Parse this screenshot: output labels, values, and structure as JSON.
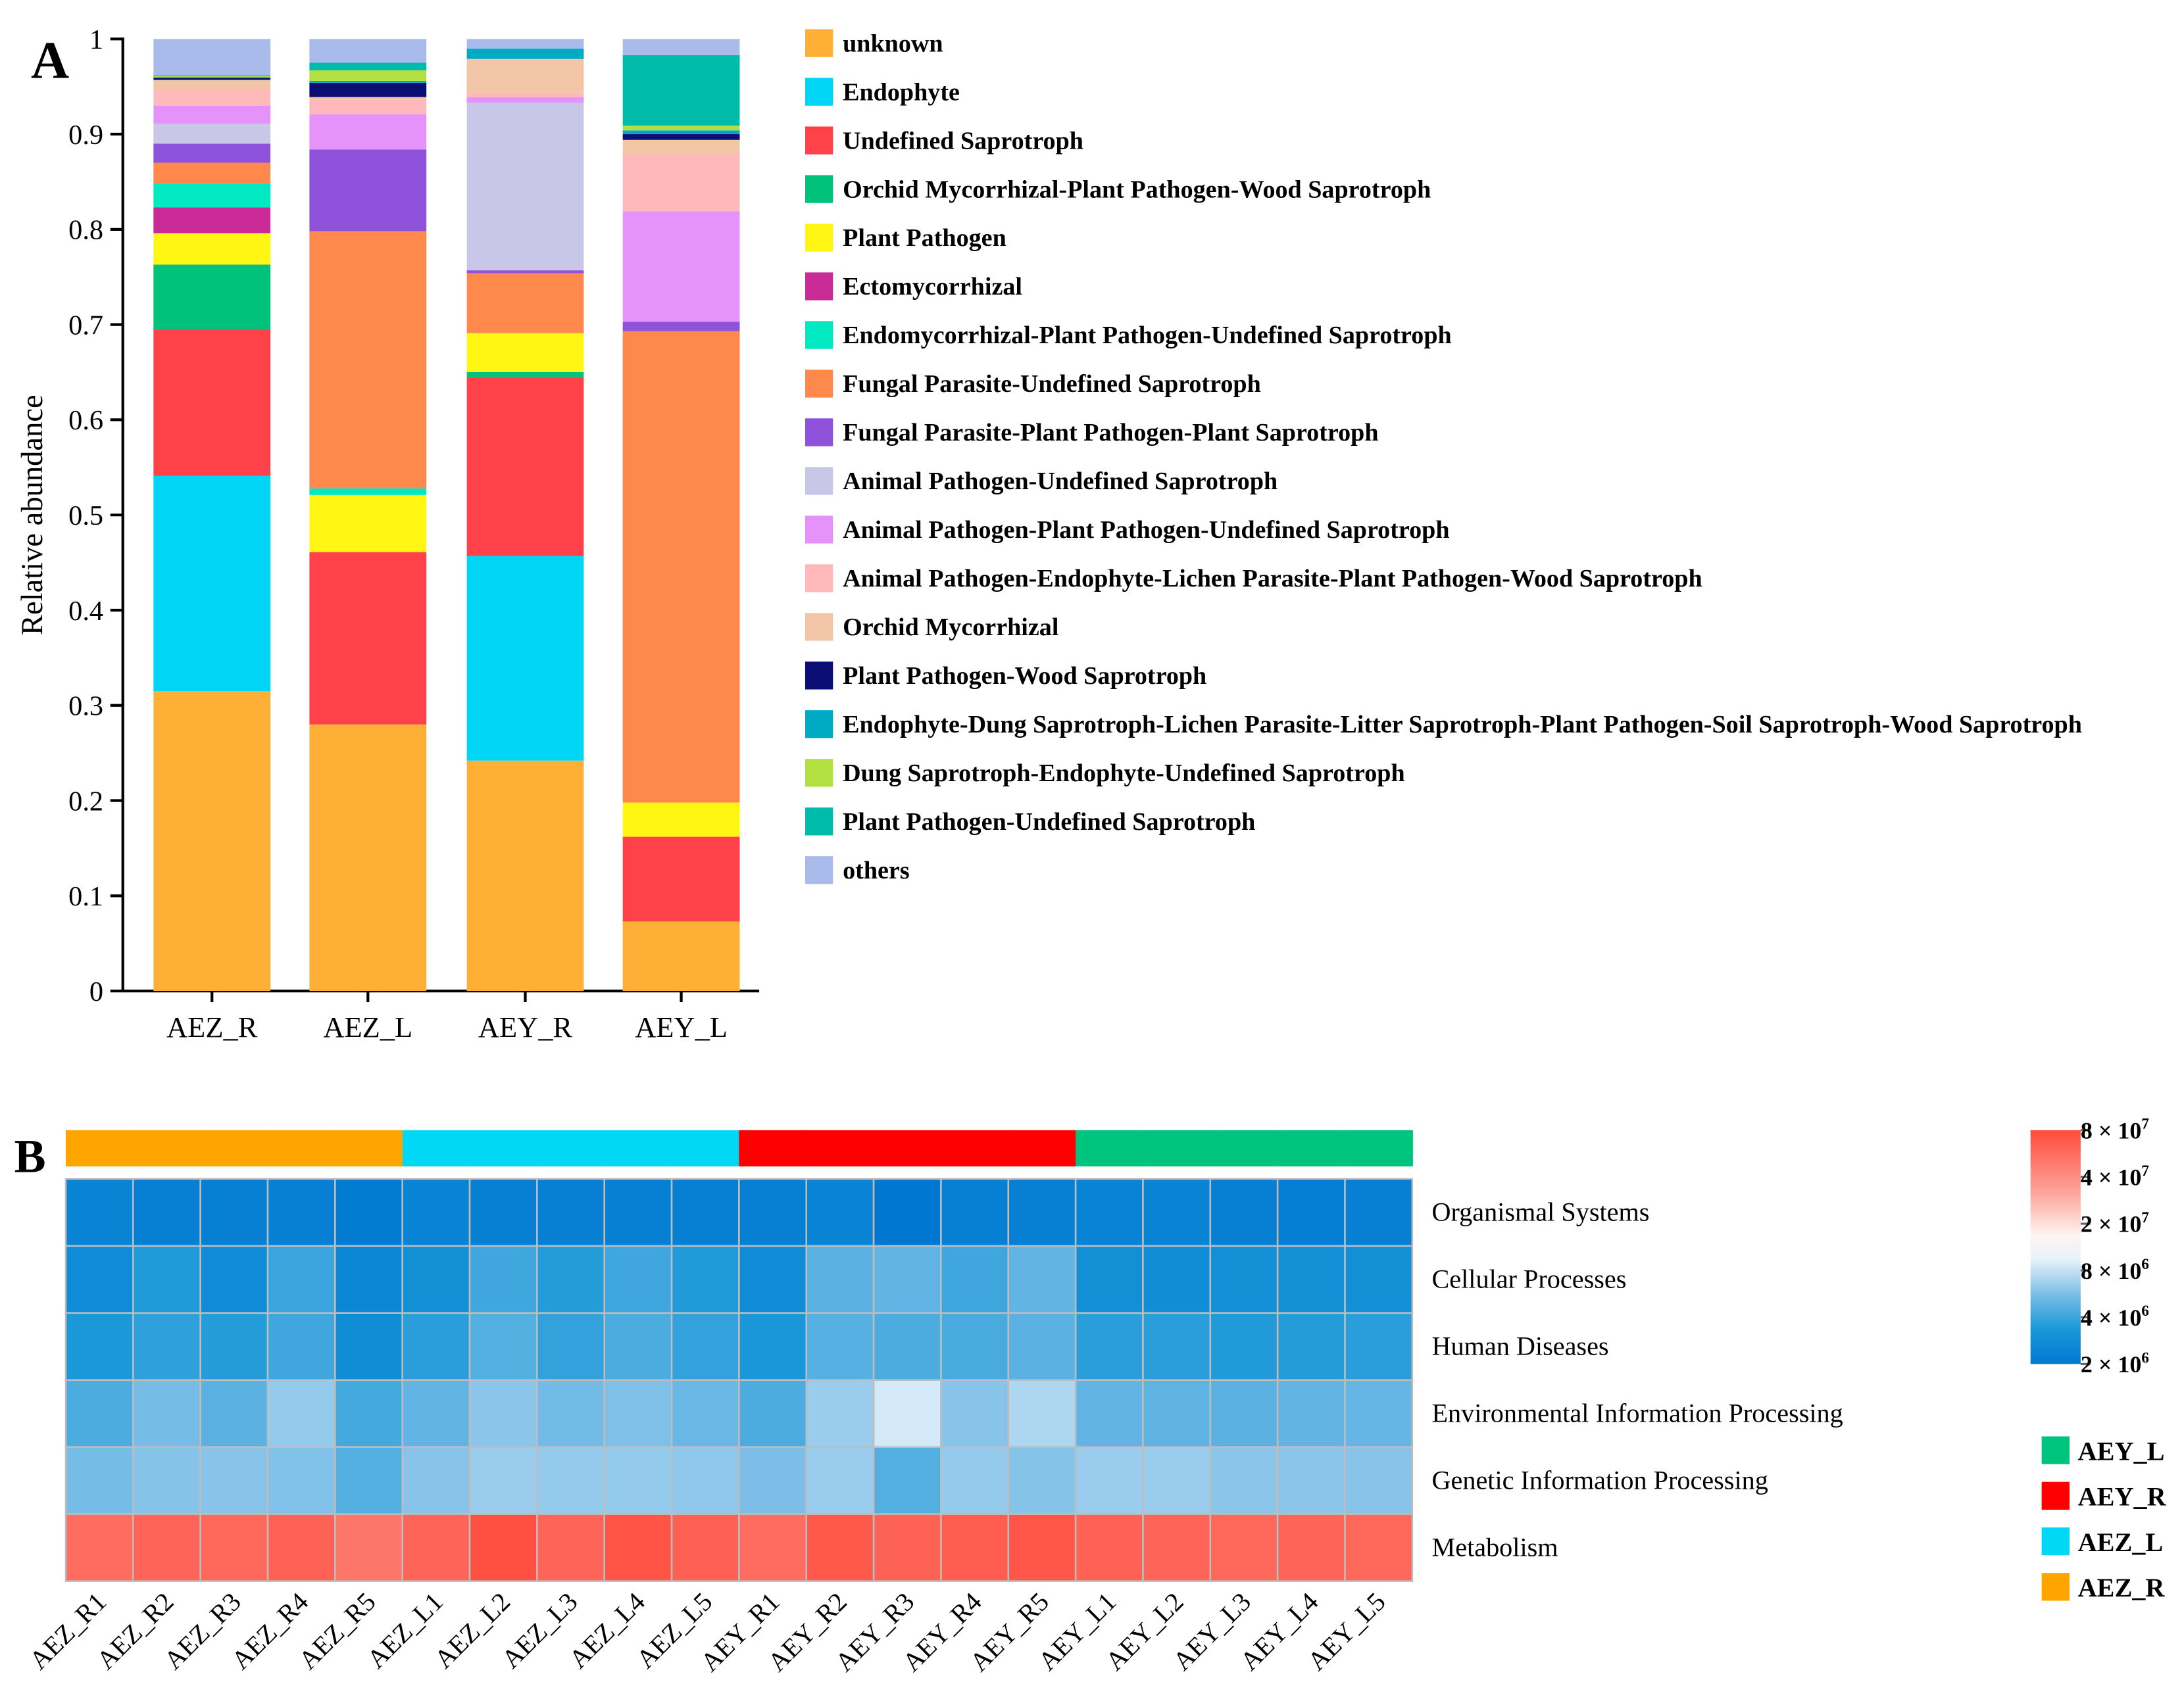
{
  "panel_labels": {
    "a": "A",
    "b": "B"
  },
  "chart_data": [
    {
      "type": "bar",
      "stacked": true,
      "title": "",
      "xlabel": "",
      "ylabel": "Relative abundance",
      "ylim": [
        0,
        1
      ],
      "yticks": [
        "0",
        "0.1",
        "0.2",
        "0.3",
        "0.4",
        "0.5",
        "0.6",
        "0.7",
        "0.8",
        "0.9",
        "1"
      ],
      "categories": [
        "AEZ_R",
        "AEZ_L",
        "AEY_R",
        "AEY_L"
      ],
      "legend_position": "right",
      "series": [
        {
          "name": "unknown",
          "color": "#FDB035",
          "values": [
            0.315,
            0.28,
            0.242,
            0.073
          ]
        },
        {
          "name": "Endophyte",
          "color": "#00D5F5",
          "values": [
            0.226,
            0.0,
            0.215,
            0.0
          ]
        },
        {
          "name": "Undefined Saprotroph",
          "color": "#FF4149",
          "values": [
            0.154,
            0.181,
            0.188,
            0.089
          ]
        },
        {
          "name": "Orchid Mycorrhizal-Plant Pathogen-Wood Saprotroph",
          "color": "#00C27A",
          "values": [
            0.068,
            0.0,
            0.005,
            0.0
          ]
        },
        {
          "name": "Plant Pathogen",
          "color": "#FFF614",
          "values": [
            0.033,
            0.06,
            0.041,
            0.036
          ]
        },
        {
          "name": "Ectomycorrhizal",
          "color": "#C92A96",
          "values": [
            0.027,
            0.0,
            0.0,
            0.0
          ]
        },
        {
          "name": "Endomycorrhizal-Plant Pathogen-Undefined Saprotroph",
          "color": "#00E9C0",
          "values": [
            0.025,
            0.007,
            0.0,
            0.0
          ]
        },
        {
          "name": "Fungal Parasite-Undefined Saprotroph",
          "color": "#FF894C",
          "values": [
            0.022,
            0.27,
            0.063,
            0.495
          ]
        },
        {
          "name": "Fungal Parasite-Plant Pathogen-Plant Saprotroph",
          "color": "#8F52DB",
          "values": [
            0.02,
            0.086,
            0.003,
            0.01
          ]
        },
        {
          "name": "Animal Pathogen-Undefined Saprotroph",
          "color": "#C8C7E8",
          "values": [
            0.021,
            0.0,
            0.176,
            0.0
          ]
        },
        {
          "name": "Animal Pathogen-Plant Pathogen-Undefined Saprotroph",
          "color": "#E593FB",
          "values": [
            0.019,
            0.037,
            0.006,
            0.116
          ]
        },
        {
          "name": "Animal Pathogen-Endophyte-Lichen Parasite-Plant Pathogen-Wood Saprotroph",
          "color": "#FFB9BB",
          "values": [
            0.017,
            0.015,
            0.004,
            0.06
          ]
        },
        {
          "name": "Orchid Mycorrhizal",
          "color": "#F1C5A6",
          "values": [
            0.01,
            0.003,
            0.036,
            0.015
          ]
        },
        {
          "name": "Plant Pathogen-Wood Saprotroph",
          "color": "#0A0D74",
          "values": [
            0.002,
            0.015,
            0.0,
            0.006
          ]
        },
        {
          "name": "Endophyte-Dung Saprotroph-Lichen Parasite-Litter Saprotroph-Plant Pathogen-Soil Saprotroph-Wood Saprotroph",
          "color": "#00AAC2",
          "values": [
            0.001,
            0.002,
            0.011,
            0.004
          ]
        },
        {
          "name": "Dung Saprotroph-Endophyte-Undefined Saprotroph",
          "color": "#B2E040",
          "values": [
            0.001,
            0.011,
            0.0,
            0.005
          ]
        },
        {
          "name": "Plant Pathogen-Undefined Saprotroph",
          "color": "#00BBAA",
          "values": [
            0.001,
            0.008,
            0.0,
            0.074
          ]
        },
        {
          "name": "others",
          "color": "#A8BBEB",
          "values": [
            0.038,
            0.025,
            0.01,
            0.017
          ]
        }
      ]
    },
    {
      "type": "heatmap",
      "title": "",
      "scale": "log",
      "value_unit": "1e6",
      "columns": [
        "AEZ_R1",
        "AEZ_R2",
        "AEZ_R3",
        "AEZ_R4",
        "AEZ_R5",
        "AEZ_L1",
        "AEZ_L2",
        "AEZ_L3",
        "AEZ_L4",
        "AEZ_L5",
        "AEY_R1",
        "AEY_R2",
        "AEY_R3",
        "AEY_R4",
        "AEY_R5",
        "AEY_L1",
        "AEY_L2",
        "AEY_L3",
        "AEY_L4",
        "AEY_L5"
      ],
      "column_groups": [
        "AEZ_R",
        "AEZ_R",
        "AEZ_R",
        "AEZ_R",
        "AEZ_R",
        "AEZ_L",
        "AEZ_L",
        "AEZ_L",
        "AEZ_L",
        "AEZ_L",
        "AEY_R",
        "AEY_R",
        "AEY_R",
        "AEY_R",
        "AEY_R",
        "AEY_L",
        "AEY_L",
        "AEY_L",
        "AEY_L",
        "AEY_L"
      ],
      "rows": [
        "Organismal Systems",
        "Cellular Processes",
        "Human Diseases",
        "Environmental Information Processing",
        "Genetic Information Processing",
        "Metabolism"
      ],
      "values": [
        [
          2.4,
          2.3,
          2.3,
          2.3,
          2.1,
          2.4,
          2.3,
          2.3,
          2.3,
          2.3,
          2.3,
          2.4,
          2.0,
          2.3,
          2.3,
          2.4,
          2.4,
          2.3,
          2.2,
          2.3
        ],
        [
          2.8,
          3.6,
          2.8,
          4.2,
          2.6,
          3.0,
          4.3,
          3.7,
          4.3,
          3.6,
          2.8,
          5.0,
          5.2,
          4.3,
          5.2,
          3.0,
          2.9,
          3.0,
          3.0,
          3.0
        ],
        [
          3.5,
          3.9,
          3.7,
          4.3,
          2.9,
          3.8,
          4.8,
          4.0,
          4.6,
          4.0,
          3.4,
          4.9,
          4.6,
          4.5,
          5.0,
          3.8,
          3.8,
          3.6,
          3.7,
          3.8
        ],
        [
          4.6,
          5.8,
          5.0,
          6.8,
          4.4,
          5.2,
          6.5,
          5.7,
          6.1,
          5.4,
          4.6,
          7.0,
          9.5,
          6.4,
          7.8,
          5.2,
          5.1,
          5.0,
          5.2,
          5.3
        ],
        [
          5.8,
          6.3,
          6.4,
          6.2,
          4.8,
          6.4,
          7.0,
          6.8,
          6.8,
          6.6,
          6.0,
          7.0,
          4.8,
          6.8,
          6.3,
          7.0,
          7.0,
          6.5,
          6.5,
          6.4
        ],
        [
          55,
          60,
          58,
          62,
          50,
          60,
          75,
          60,
          72,
          63,
          55,
          68,
          62,
          65,
          70,
          62,
          60,
          58,
          60,
          58
        ]
      ],
      "colorbar": {
        "range": [
          2,
          80
        ],
        "ticks": [
          {
            "value": 80,
            "base": "8 × 10",
            "exp": "7"
          },
          {
            "value": 40,
            "base": "4 × 10",
            "exp": "7"
          },
          {
            "value": 20,
            "base": "2 × 10",
            "exp": "7"
          },
          {
            "value": 8,
            "base": "8 × 10",
            "exp": "6"
          },
          {
            "value": 4,
            "base": "4 × 10",
            "exp": "6"
          },
          {
            "value": 2,
            "base": "2 × 10",
            "exp": "6"
          }
        ]
      },
      "groups": [
        {
          "name": "AEY_L",
          "color": "#00C47E"
        },
        {
          "name": "AEY_R",
          "color": "#FF0000"
        },
        {
          "name": "AEZ_L",
          "color": "#00D8F5"
        },
        {
          "name": "AEZ_R",
          "color": "#FFA500"
        }
      ]
    }
  ]
}
